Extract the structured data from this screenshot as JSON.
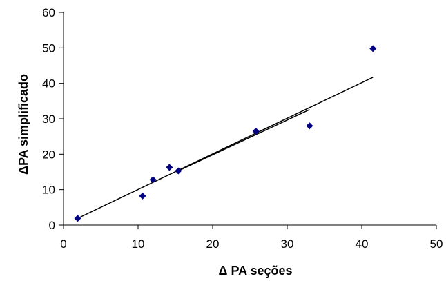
{
  "chart_data": {
    "type": "scatter",
    "title": "",
    "xlabel": "Δ PA seções",
    "ylabel": "ΔPA simplificado",
    "xlim": [
      0,
      50
    ],
    "ylim": [
      0,
      60
    ],
    "xticks": [
      0,
      10,
      20,
      30,
      40,
      50
    ],
    "yticks": [
      0,
      10,
      20,
      30,
      40,
      50,
      60
    ],
    "grid": false,
    "legend": "none",
    "marker_color": "#000080",
    "line_color": "#000000",
    "series": [
      {
        "points": [
          {
            "x": 1.9,
            "y": 1.9
          },
          {
            "x": 10.6,
            "y": 8.2
          },
          {
            "x": 12.0,
            "y": 12.8
          },
          {
            "x": 14.2,
            "y": 16.3
          },
          {
            "x": 15.4,
            "y": 15.3
          },
          {
            "x": 25.8,
            "y": 26.5
          },
          {
            "x": 33.0,
            "y": 28.0
          },
          {
            "x": 41.5,
            "y": 49.8
          }
        ]
      }
    ],
    "trendline": {
      "segments": [
        {
          "x1": 1.9,
          "y1": 1.9,
          "x2": 41.5,
          "y2": 41.7
        },
        {
          "x1": 15.4,
          "y1": 15.3,
          "x2": 33.0,
          "y2": 32.6
        }
      ]
    }
  }
}
